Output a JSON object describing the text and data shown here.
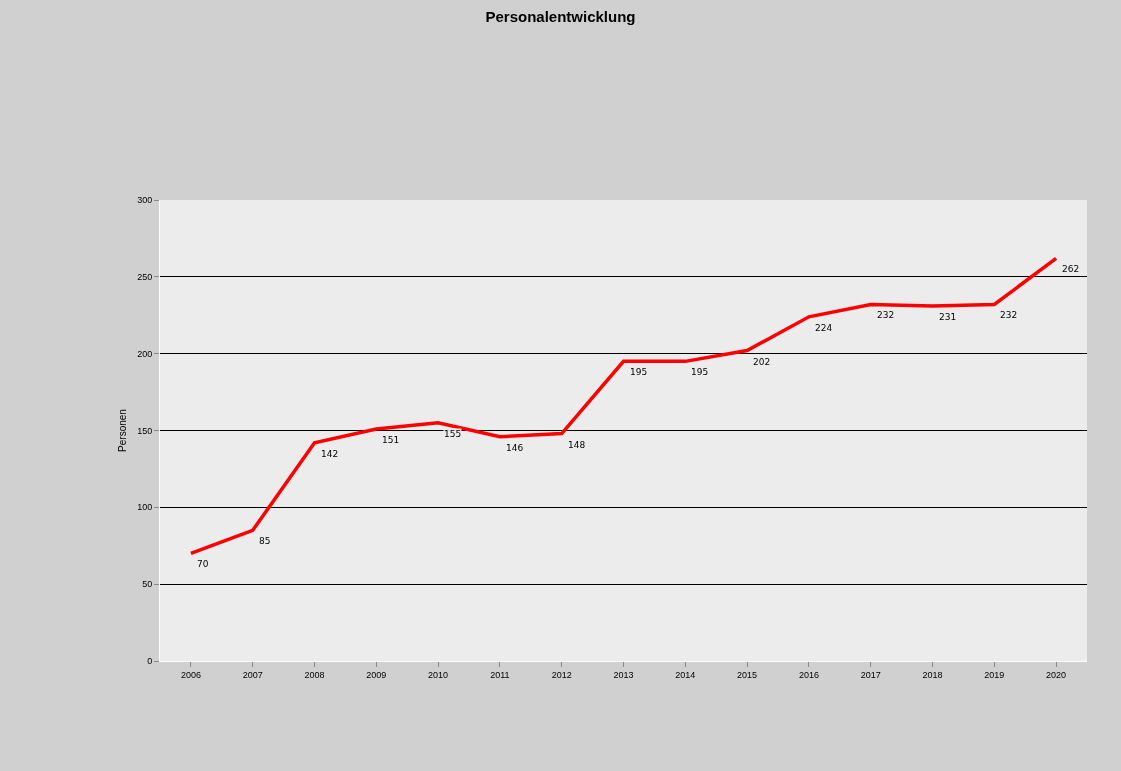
{
  "chart_data": {
    "type": "line",
    "title": "Personalentwicklung",
    "ylabel": "Personen",
    "categories": [
      "2006",
      "2007",
      "2008",
      "2009",
      "2010",
      "2011",
      "2012",
      "2013",
      "2014",
      "2015",
      "2016",
      "2017",
      "2018",
      "2019",
      "2020"
    ],
    "series": [
      {
        "color": "#ff0000",
        "values": [
          70,
          85,
          142,
          151,
          155,
          146,
          148,
          195,
          195,
          202,
          224,
          232,
          231,
          232,
          262
        ]
      }
    ],
    "ylim": [
      0,
      300
    ],
    "yticks": [
      0,
      50,
      100,
      150,
      200,
      250,
      300
    ],
    "grid": "y",
    "data_labels": true,
    "marker": "none",
    "line_style": "solid"
  }
}
